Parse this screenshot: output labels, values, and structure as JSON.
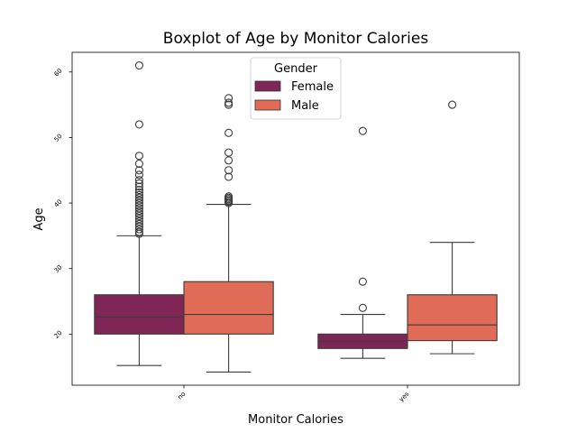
{
  "chart_data": {
    "type": "box",
    "title": "Boxplot of Age by Monitor Calories",
    "xlabel": "Monitor Calories",
    "ylabel": "Age",
    "categories": [
      "no",
      "yes"
    ],
    "ylim": [
      12.2,
      63
    ],
    "yticks": [
      20,
      30,
      40,
      50,
      60
    ],
    "grid": false,
    "legend": {
      "title": "Gender",
      "position": "top-center"
    },
    "series": [
      {
        "name": "Female",
        "color": "#7f2657",
        "boxes": [
          {
            "category": "no",
            "whisker_low": 15.2,
            "q1": 20,
            "median": 22.6,
            "q3": 26,
            "whisker_high": 35,
            "outliers": [
              35.3,
              35.6,
              36,
              36.4,
              36.8,
              37.2,
              37.6,
              38,
              38.4,
              38.8,
              39.2,
              39.6,
              40,
              40.4,
              40.8,
              41.2,
              41.6,
              42,
              42.5,
              43,
              43.5,
              44.3,
              45,
              46,
              47.2,
              52,
              61
            ]
          },
          {
            "category": "yes",
            "whisker_low": 16.3,
            "q1": 17.8,
            "median": 18.9,
            "q3": 20,
            "whisker_high": 23,
            "outliers": [
              24,
              28,
              51
            ]
          }
        ]
      },
      {
        "name": "Male",
        "color": "#e06b56",
        "boxes": [
          {
            "category": "no",
            "whisker_low": 14.2,
            "q1": 20,
            "median": 23,
            "q3": 28,
            "whisker_high": 39.8,
            "outliers": [
              40,
              40.2,
              40.4,
              40.6,
              40.8,
              41,
              44,
              45,
              46.5,
              47.7,
              50.7,
              55,
              55.3,
              56
            ]
          },
          {
            "category": "yes",
            "whisker_low": 17,
            "q1": 19,
            "median": 21.4,
            "q3": 26,
            "whisker_high": 34,
            "outliers": [
              55
            ]
          }
        ]
      }
    ]
  }
}
